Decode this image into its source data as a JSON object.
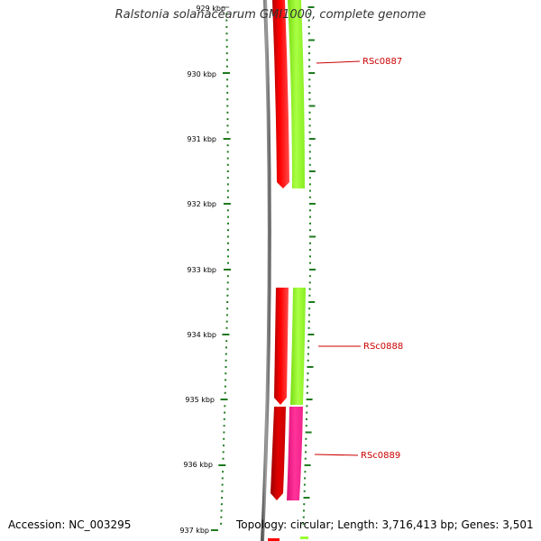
{
  "title": "Ralstonia solanacearum GMI1000, complete genome",
  "accession": "Accession: NC_003295",
  "topology": "Topology: circular; Length: 3,716,413 bp; Genes: 3,501",
  "scale": {
    "tick_labels": [
      "929 kbp",
      "930 kbp",
      "931 kbp",
      "932 kbp",
      "933 kbp",
      "934 kbp",
      "935 kbp",
      "936 kbp",
      "937 kbp"
    ]
  },
  "genes": [
    {
      "id": "RSc0887",
      "label": "RSc0887"
    },
    {
      "id": "RSc0888",
      "label": "RSc0888"
    },
    {
      "id": "RSc0889",
      "label": "RSc0889"
    }
  ],
  "colors": {
    "scale_tick": "#1f7a1f",
    "backbone": "#808080",
    "gene_red": "#ff0000",
    "cds_green": "#99ff33",
    "cds_pink": "#ff3399",
    "label_red": "#cc0000"
  }
}
